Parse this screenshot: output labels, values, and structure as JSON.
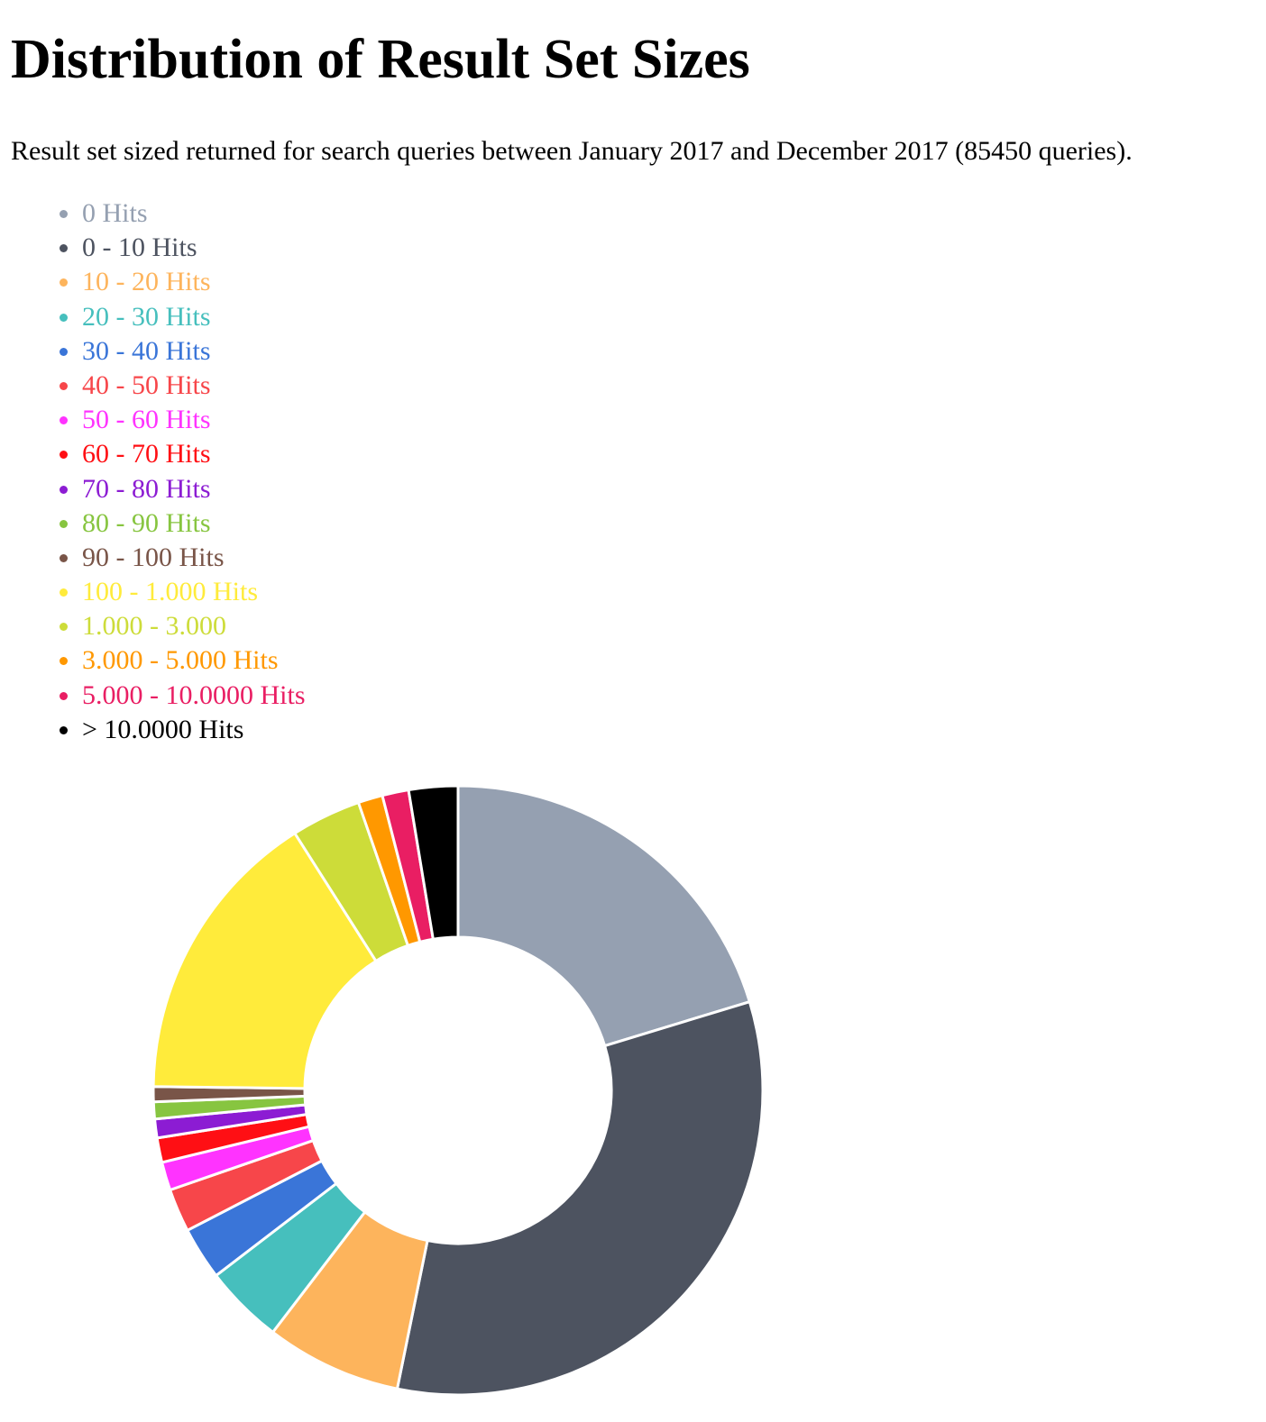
{
  "title": "Distribution of Result Set Sizes",
  "subtitle": "Result set sized returned for search queries between January 2017 and December 2017 (85450 queries).",
  "chart_data": {
    "type": "pie",
    "variant": "doughnut",
    "legend_position": "top-left",
    "title": "Distribution of Result Set Sizes",
    "total_queries": 85450,
    "start_angle": "12 o'clock",
    "direction": "clockwise",
    "slices": [
      {
        "label": "0 Hits",
        "percent": 20.3,
        "color": "#95a0b1"
      },
      {
        "label": "0 - 10 Hits",
        "percent": 32.9,
        "color": "#4d5360"
      },
      {
        "label": "10 - 20 Hits",
        "percent": 7.2,
        "color": "#fdb45c"
      },
      {
        "label": "20 - 30 Hits",
        "percent": 4.2,
        "color": "#46bfbd"
      },
      {
        "label": "30 - 40 Hits",
        "percent": 2.8,
        "color": "#3a75d8"
      },
      {
        "label": "40 - 50 Hits",
        "percent": 2.3,
        "color": "#f7464a"
      },
      {
        "label": "50 - 60 Hits",
        "percent": 1.5,
        "color": "#ff33ff"
      },
      {
        "label": "60 - 70 Hits",
        "percent": 1.3,
        "color": "#ff0f14"
      },
      {
        "label": "70 - 80 Hits",
        "percent": 1.0,
        "color": "#8c1cd3"
      },
      {
        "label": "80 - 90 Hits",
        "percent": 0.9,
        "color": "#87c540"
      },
      {
        "label": "90 - 100 Hits",
        "percent": 0.8,
        "color": "#795548"
      },
      {
        "label": "100 - 1.000 Hits",
        "percent": 15.8,
        "color": "#ffeb3b"
      },
      {
        "label": "1.000 - 3.000",
        "percent": 3.7,
        "color": "#cddc39"
      },
      {
        "label": "3.000 - 5.000 Hits",
        "percent": 1.3,
        "color": "#ff9800"
      },
      {
        "label": "5.000 - 10.0000 Hits",
        "percent": 1.4,
        "color": "#e91e63"
      },
      {
        "label": "> 10.0000 Hits",
        "percent": 2.6,
        "color": "#000000"
      }
    ]
  }
}
